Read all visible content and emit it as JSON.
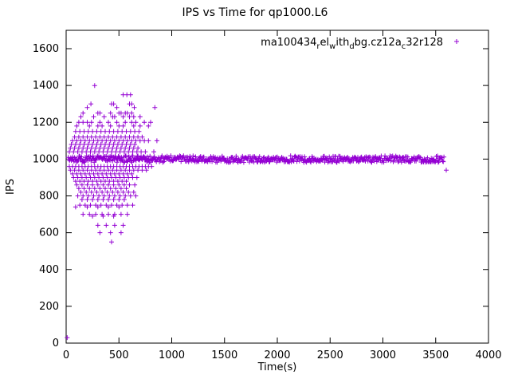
{
  "chart_data": {
    "type": "scatter",
    "title": "IPS vs Time for qp1000.L6",
    "xlabel": "Time(s)",
    "ylabel": "IPS",
    "xlim": [
      0,
      4000
    ],
    "ylim": [
      0,
      1700
    ],
    "xticks": [
      0,
      500,
      1000,
      1500,
      2000,
      2500,
      3000,
      3500,
      4000
    ],
    "yticks": [
      0,
      200,
      400,
      600,
      800,
      1000,
      1200,
      1400,
      1600
    ],
    "grid": false,
    "marker": "plus",
    "marker_color": "#9400d3",
    "legend": {
      "position": "top-right",
      "sample_marker": "plus",
      "segments": [
        {
          "text": "ma100434"
        },
        {
          "text": "r",
          "sub": true
        },
        {
          "text": "el"
        },
        {
          "text": "w",
          "sub": true
        },
        {
          "text": "ith"
        },
        {
          "text": "d",
          "sub": true
        },
        {
          "text": "bg.cz12a"
        },
        {
          "text": "c",
          "sub": true
        },
        {
          "text": "32r128"
        }
      ]
    },
    "band": {
      "x_start": 20,
      "x_end": 3580,
      "x_step": 6,
      "y_center": 1000,
      "y_jitter": 18
    },
    "rows": [
      {
        "y": 1400,
        "x": [
          270
        ]
      },
      {
        "y": 1350,
        "x": [
          540,
          575,
          610
        ]
      },
      {
        "y": 1300,
        "x": [
          235,
          430,
          450,
          600,
          620
        ]
      },
      {
        "y": 1280,
        "x": [
          200,
          480,
          645,
          840
        ]
      },
      {
        "y": 1250,
        "x": [
          160,
          300,
          320,
          420,
          500,
          520,
          560,
          580,
          620
        ]
      },
      {
        "y": 1230,
        "x": [
          140,
          260,
          360,
          440,
          460,
          540,
          600,
          640,
          700
        ]
      },
      {
        "y": 1200,
        "x": [
          120,
          160,
          200,
          240,
          320,
          400,
          480,
          560,
          620,
          660,
          740,
          800
        ]
      },
      {
        "y": 1180,
        "x": [
          100,
          220,
          300,
          340,
          420,
          500,
          540,
          640,
          700,
          780
        ]
      },
      {
        "y": 1150,
        "x": [
          90,
          130,
          170,
          210,
          250,
          290,
          330,
          370,
          410,
          450,
          490,
          530,
          570,
          610,
          650,
          690
        ]
      },
      {
        "y": 1120,
        "x": [
          80,
          120,
          160,
          200,
          240,
          280,
          320,
          360,
          400,
          440,
          480,
          520,
          560,
          600,
          640,
          680,
          720
        ]
      },
      {
        "y": 1100,
        "x": [
          60,
          100,
          140,
          180,
          220,
          260,
          300,
          340,
          380,
          420,
          460,
          500,
          540,
          580,
          620,
          660,
          700,
          740,
          780,
          860
        ]
      },
      {
        "y": 1080,
        "x": [
          50,
          90,
          130,
          170,
          210,
          250,
          290,
          330,
          370,
          410,
          450,
          490,
          530,
          570,
          610,
          650
        ]
      },
      {
        "y": 1060,
        "x": [
          40,
          80,
          120,
          160,
          200,
          240,
          280,
          320,
          360,
          400,
          440,
          480,
          520,
          560,
          600,
          640,
          680
        ]
      },
      {
        "y": 1040,
        "x": [
          30,
          70,
          110,
          150,
          190,
          230,
          270,
          310,
          350,
          390,
          430,
          470,
          510,
          550,
          590,
          630,
          670,
          710,
          750,
          830
        ]
      },
      {
        "y": 960,
        "x": [
          30,
          60,
          90,
          120,
          150,
          180,
          210,
          240,
          270,
          300,
          330,
          360,
          390,
          420,
          450,
          480,
          510,
          540,
          570,
          600,
          630,
          660,
          690,
          720,
          750,
          780,
          810
        ]
      },
      {
        "y": 940,
        "x": [
          40,
          80,
          120,
          160,
          200,
          240,
          280,
          320,
          360,
          400,
          440,
          480,
          520,
          560,
          600,
          640,
          680,
          720,
          760
        ]
      },
      {
        "y": 920,
        "x": [
          60,
          100,
          140,
          180,
          220,
          260,
          300,
          340,
          380,
          420,
          460,
          500,
          540,
          580,
          620
        ]
      },
      {
        "y": 900,
        "x": [
          70,
          110,
          150,
          190,
          230,
          270,
          310,
          350,
          390,
          430,
          470,
          510,
          550,
          590,
          630,
          670
        ]
      },
      {
        "y": 880,
        "x": [
          90,
          130,
          170,
          210,
          250,
          290,
          330,
          370,
          410,
          450,
          490,
          530,
          570
        ]
      },
      {
        "y": 860,
        "x": [
          100,
          150,
          200,
          250,
          300,
          350,
          400,
          450,
          500,
          550,
          600,
          650
        ]
      },
      {
        "y": 840,
        "x": [
          120,
          170,
          220,
          270,
          320,
          370,
          420,
          470,
          520,
          570
        ]
      },
      {
        "y": 820,
        "x": [
          140,
          190,
          240,
          290,
          340,
          390,
          440,
          490,
          540,
          590,
          640
        ]
      },
      {
        "y": 800,
        "x": [
          110,
          160,
          210,
          260,
          310,
          360,
          410,
          460,
          510,
          560,
          610,
          660
        ]
      },
      {
        "y": 780,
        "x": [
          150,
          200,
          250,
          300,
          350,
          400,
          450,
          500,
          550
        ]
      },
      {
        "y": 750,
        "x": [
          130,
          180,
          230,
          280,
          330,
          380,
          430,
          480,
          530,
          580,
          630
        ]
      },
      {
        "y": 740,
        "x": [
          90,
          200,
          300,
          400,
          500
        ]
      },
      {
        "y": 700,
        "x": [
          160,
          220,
          280,
          340,
          400,
          460,
          520,
          580
        ]
      },
      {
        "y": 690,
        "x": [
          250,
          350,
          450
        ]
      },
      {
        "y": 640,
        "x": [
          300,
          380,
          460,
          540
        ]
      },
      {
        "y": 600,
        "x": [
          320,
          420,
          520
        ]
      },
      {
        "y": 550,
        "x": [
          430
        ]
      }
    ],
    "outliers": [
      [
        10,
        30
      ],
      [
        3600,
        940
      ]
    ]
  }
}
